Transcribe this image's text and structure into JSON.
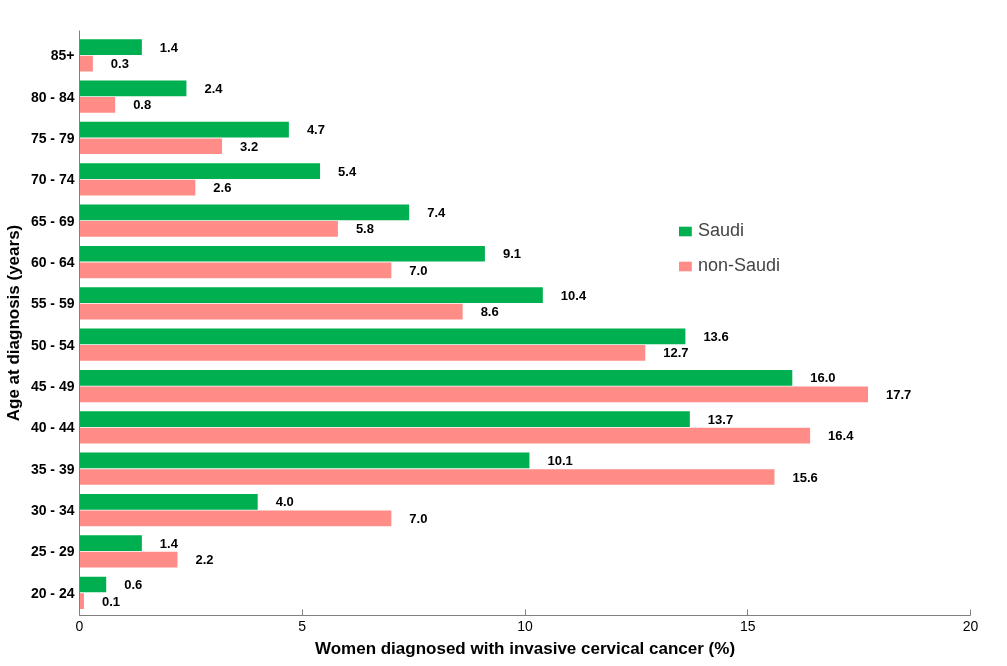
{
  "chart_data": {
    "type": "bar",
    "orientation": "horizontal",
    "xlabel": "Women diagnosed with invasive cervical cancer (%)",
    "ylabel": "Age at diagnosis (years)",
    "categories": [
      "85+",
      "80 - 84",
      "75 - 79",
      "70 - 74",
      "65 - 69",
      "60 - 64",
      "55 - 59",
      "50 - 54",
      "45 - 49",
      "40 - 44",
      "35 - 39",
      "30 - 34",
      "25 - 29",
      "20 - 24"
    ],
    "series": [
      {
        "name": "Saudi",
        "color": "#00b050",
        "values": [
          1.4,
          2.4,
          4.7,
          5.4,
          7.4,
          9.1,
          10.4,
          13.6,
          16.0,
          13.7,
          10.1,
          4.0,
          1.4,
          0.6
        ],
        "value_labels": [
          "1.4",
          "2.4",
          "4.7",
          "5.4",
          "7.4",
          "9.1",
          "10.4",
          "13.6",
          "16.0",
          "13.7",
          "10.1",
          "4.0",
          "1.4",
          "0.6"
        ]
      },
      {
        "name": "non-Saudi",
        "color": "#ff8c86",
        "values": [
          0.3,
          0.8,
          3.2,
          2.6,
          5.8,
          7.0,
          8.6,
          12.7,
          17.7,
          16.4,
          15.6,
          7.0,
          2.2,
          0.1
        ],
        "value_labels": [
          "0.3",
          "0.8",
          "3.2",
          "2.6",
          "5.8",
          "7.0",
          "8.6",
          "12.7",
          "17.7",
          "16.4",
          "15.6",
          "7.0",
          "2.2",
          "0.1"
        ]
      }
    ],
    "xlim": [
      0,
      20
    ],
    "xticks": [
      0,
      5,
      10,
      15,
      20
    ],
    "grid": false,
    "legend": "top right"
  }
}
